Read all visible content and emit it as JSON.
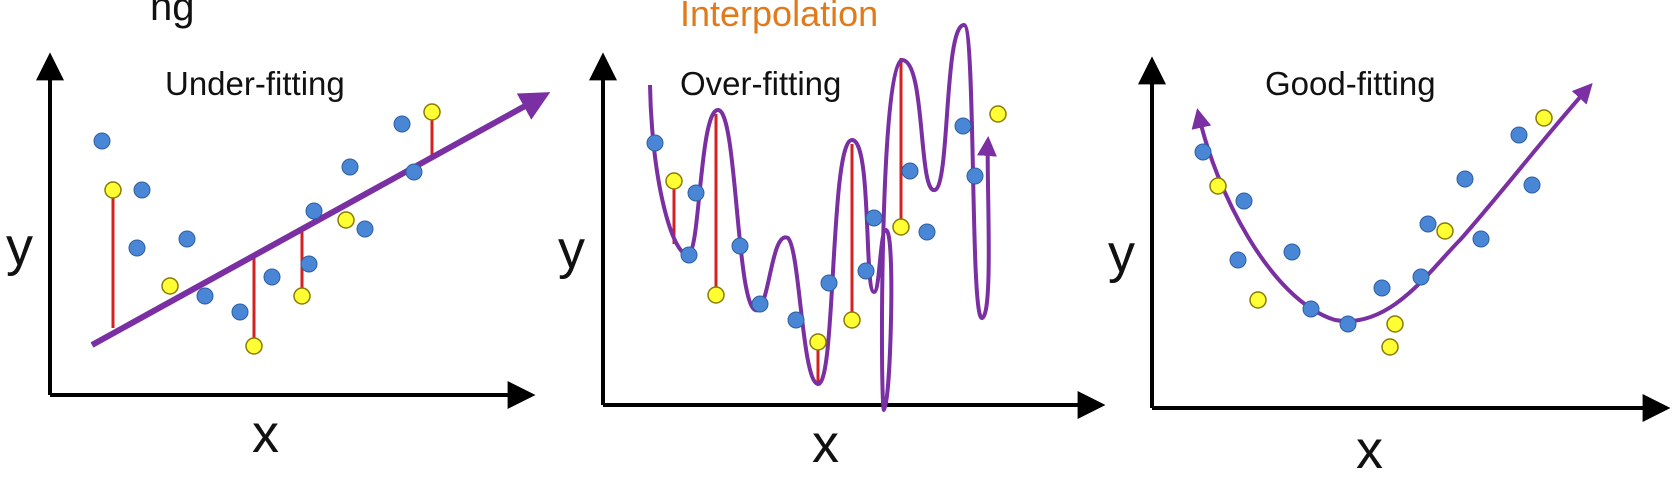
{
  "top_label": "Interpolation",
  "partial_heading": "ng",
  "colors": {
    "axis": "#000000",
    "fit_line": "#7a2fa3",
    "residual": "#d42020",
    "observed_point": "#4a86d6",
    "highlighted_point": "#ffff33",
    "top_label": "#e07a1a"
  },
  "panels": [
    {
      "id": "under",
      "title": "Under-fitting",
      "x_label": "x",
      "y_label": "y"
    },
    {
      "id": "over",
      "title": "Over-fitting",
      "x_label": "x",
      "y_label": "y"
    },
    {
      "id": "good",
      "title": "Good-fitting",
      "x_label": "x",
      "y_label": "y"
    }
  ]
}
